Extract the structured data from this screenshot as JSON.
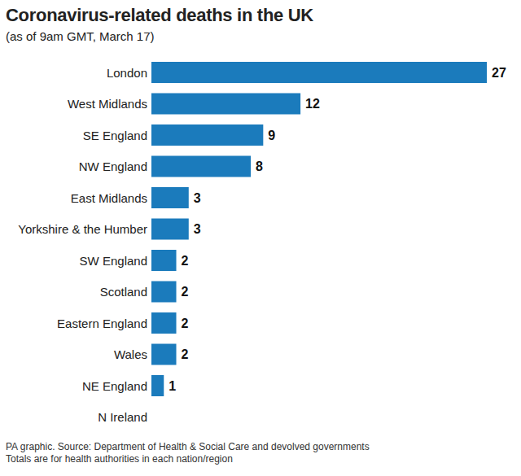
{
  "chart_data": {
    "type": "bar",
    "orientation": "horizontal",
    "title": "Coronavirus-related deaths in the UK",
    "subtitle": "(as of 9am GMT, March 17)",
    "categories": [
      "London",
      "West Midlands",
      "SE England",
      "NW England",
      "East Midlands",
      "Yorkshire & the Humber",
      "SW England",
      "Scotland",
      "Eastern England",
      "Wales",
      "NE England",
      "N Ireland"
    ],
    "values": [
      27,
      12,
      9,
      8,
      3,
      3,
      2,
      2,
      2,
      2,
      1,
      0
    ],
    "color": "#1b7bbc",
    "data_labels": true,
    "tick_labels": "y",
    "annotations": [
      "PA graphic. Source: Department of Health & Social Care and devolved governments",
      "Totals are for health authorities in each nation/region"
    ]
  }
}
